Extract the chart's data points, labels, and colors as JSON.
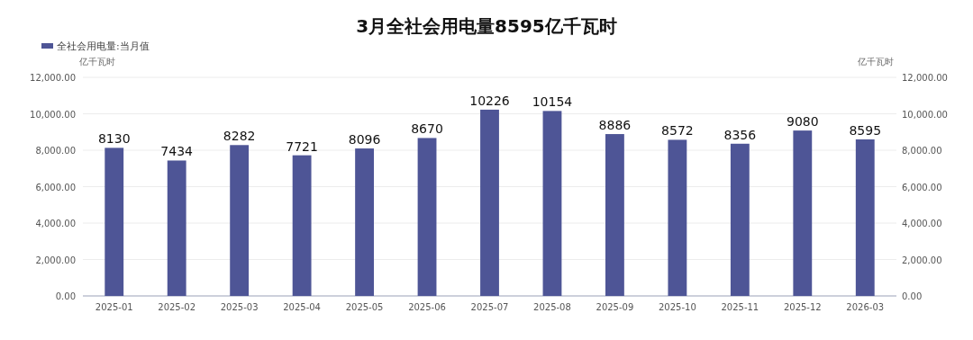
{
  "chart_data": {
    "type": "bar",
    "title": "3月全社会用电量8595亿千瓦时",
    "ylabel": "亿千瓦时",
    "y2label": "亿千瓦时",
    "categories": [
      "2025-01",
      "2025-02",
      "2025-03",
      "2025-04",
      "2025-05",
      "2025-06",
      "2025-07",
      "2025-08",
      "2025-09",
      "2025-10",
      "2025-11",
      "2025-12",
      "2026-03"
    ],
    "series": [
      {
        "name": "全社会用电量:当月值",
        "color": "#4e5596",
        "values": [
          8130,
          7434,
          8282,
          7721,
          8096,
          8670,
          10226,
          10154,
          8886,
          8572,
          8356,
          9080,
          8595
        ]
      }
    ],
    "ylim": [
      0,
      12000
    ],
    "yticks": [
      {
        "value": 0,
        "label": "0.00"
      },
      {
        "value": 2000,
        "label": "2,000.00"
      },
      {
        "value": 4000,
        "label": "4,000.00"
      },
      {
        "value": 6000,
        "label": "6,000.00"
      },
      {
        "value": 8000,
        "label": "8,000.00"
      },
      {
        "value": 10000,
        "label": "10,000.00"
      },
      {
        "value": 12000,
        "label": "12,000.00"
      }
    ],
    "y2lim": [
      0,
      12000
    ],
    "y2ticks": [
      {
        "value": 0,
        "label": "0.00"
      },
      {
        "value": 2000,
        "label": "2,000.00"
      },
      {
        "value": 4000,
        "label": "4,000.00"
      },
      {
        "value": 6000,
        "label": "6,000.00"
      },
      {
        "value": 8000,
        "label": "8,000.00"
      },
      {
        "value": 10000,
        "label": "10,000.00"
      },
      {
        "value": 12000,
        "label": "12,000.00"
      }
    ],
    "grid": "y",
    "legend": "top left",
    "data_labels": true
  }
}
